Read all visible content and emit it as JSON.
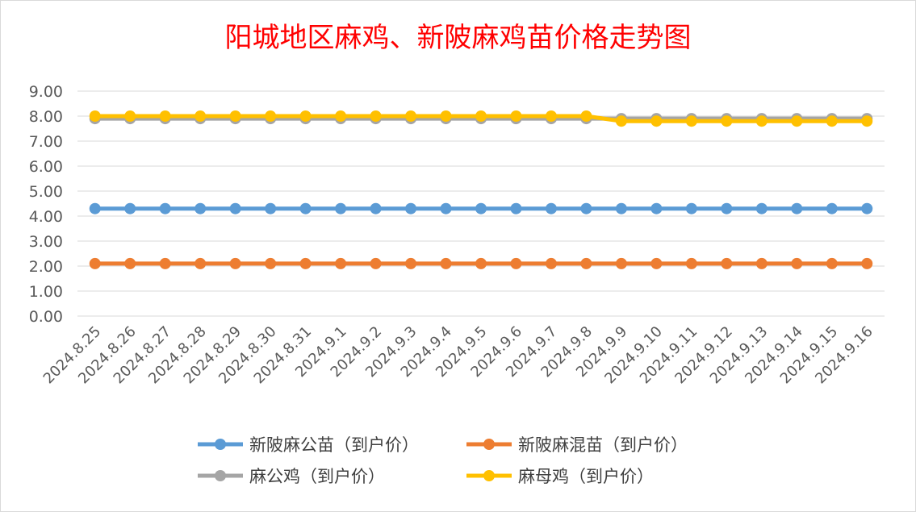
{
  "chart_data": {
    "type": "line",
    "title": "阳城地区麻鸡、新陂麻鸡苗价格走势图",
    "xlabel": "",
    "ylabel": "",
    "ylim": [
      0,
      9
    ],
    "yticks": [
      "0.00",
      "1.00",
      "2.00",
      "3.00",
      "4.00",
      "5.00",
      "6.00",
      "7.00",
      "8.00",
      "9.00"
    ],
    "grid": true,
    "legend_position": "bottom",
    "categories": [
      "2024.8.25",
      "2024.8.26",
      "2024.8.27",
      "2024.8.28",
      "2024.8.29",
      "2024.8.30",
      "2024.8.31",
      "2024.9.1",
      "2024.9.2",
      "2024.9.3",
      "2024.9.4",
      "2024.9.5",
      "2024.9.6",
      "2024.9.7",
      "2024.9.8",
      "2024.9.9",
      "2024.9.10",
      "2024.9.11",
      "2024.9.12",
      "2024.9.13",
      "2024.9.14",
      "2024.9.15",
      "2024.9.16"
    ],
    "series": [
      {
        "name": "新陂麻公苗（到户价）",
        "color": "#5b9bd5",
        "values": [
          4.3,
          4.3,
          4.3,
          4.3,
          4.3,
          4.3,
          4.3,
          4.3,
          4.3,
          4.3,
          4.3,
          4.3,
          4.3,
          4.3,
          4.3,
          4.3,
          4.3,
          4.3,
          4.3,
          4.3,
          4.3,
          4.3,
          4.3
        ]
      },
      {
        "name": "新陂麻混苗（到户价）",
        "color": "#ed7d31",
        "values": [
          2.1,
          2.1,
          2.1,
          2.1,
          2.1,
          2.1,
          2.1,
          2.1,
          2.1,
          2.1,
          2.1,
          2.1,
          2.1,
          2.1,
          2.1,
          2.1,
          2.1,
          2.1,
          2.1,
          2.1,
          2.1,
          2.1,
          2.1
        ]
      },
      {
        "name": "麻公鸡（到户价）",
        "color": "#a5a5a5",
        "values": [
          7.9,
          7.9,
          7.9,
          7.9,
          7.9,
          7.9,
          7.9,
          7.9,
          7.9,
          7.9,
          7.9,
          7.9,
          7.9,
          7.9,
          7.9,
          7.9,
          7.9,
          7.9,
          7.9,
          7.9,
          7.9,
          7.9,
          7.9
        ]
      },
      {
        "name": "麻母鸡（到户价）",
        "color": "#ffc000",
        "values": [
          8.0,
          8.0,
          8.0,
          8.0,
          8.0,
          8.0,
          8.0,
          8.0,
          8.0,
          8.0,
          8.0,
          8.0,
          8.0,
          8.0,
          8.0,
          7.8,
          7.8,
          7.8,
          7.8,
          7.8,
          7.8,
          7.8,
          7.8
        ]
      }
    ]
  }
}
